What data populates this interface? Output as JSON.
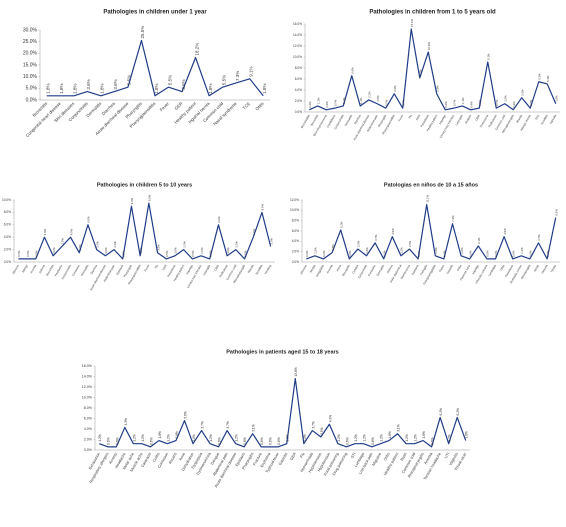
{
  "chart_data": [
    {
      "type": "line",
      "title": "Pathologies in children under 1 year",
      "color": "#1f3c88",
      "categories": [
        "Bronchitis",
        "Congenital heart disease",
        "Skin diseases",
        "Conjunctivitis",
        "Dermatitis",
        "Diarrhea",
        "Acute diarrheal disease",
        "Pharyngitis",
        "Pharyngotonsillitis",
        "Fever",
        "GER",
        "Healthy patient",
        "Inguinal hernia",
        "Common cold",
        "Nasal syndrome",
        "TCE",
        "Otitis"
      ],
      "values": [
        1.8,
        1.8,
        1.8,
        3.6,
        1.8,
        3.6,
        5.5,
        25.5,
        1.8,
        5.5,
        3.6,
        18.2,
        1.8,
        5.5,
        7.3,
        9.1,
        1.8
      ],
      "value_labels": [
        "1.8%",
        "1.8%",
        "1.8%",
        "3.6%",
        "1.8%",
        "3.6%",
        "5.5%",
        "25.5%",
        "1.8%",
        "5.5%",
        "3.6%",
        "18.2%",
        "1.8%",
        "5.5%",
        "7.3%",
        "9.1%",
        "1.8%"
      ],
      "ylim": [
        0,
        30
      ],
      "yticks": [
        {
          "value": 0,
          "label": "0.0%"
        },
        {
          "value": 5,
          "label": "5.0%"
        },
        {
          "value": 10,
          "label": "10.0%"
        },
        {
          "value": 15,
          "label": "15.0%"
        },
        {
          "value": 20,
          "label": "20.0%"
        },
        {
          "value": 25,
          "label": "25.0%"
        },
        {
          "value": 30,
          "label": "30.0%"
        }
      ]
    },
    {
      "type": "line",
      "title": "Pathologies in children from 1 to 5 years old",
      "color": "#1f3c88",
      "categories": [
        "Bronchiolitis",
        "Bronchitis",
        "Bronchopneumonia",
        "Candidiasis",
        "Conjunctivitis",
        "Dermatitis",
        "Diarrhea",
        "Acute diarrheal disease",
        "Abdominal pain",
        "Pharyngitis",
        "Pharyngotonsillitis",
        "Fever",
        "Flu",
        "GER",
        "Parasitosis",
        "Healthy patient",
        "Impetigo",
        "Urinary tract infection",
        "Laryngitis",
        "Scabies",
        "Otitis",
        "Pneumonia",
        "Pediculosis",
        "Common cold",
        "Rhinopharyngitis",
        "Rhinitis",
        "Allergic rhinitis",
        "TCE",
        "Tonsillitis",
        "Varicella"
      ],
      "values": [
        0.4,
        1.1,
        0.4,
        0.7,
        1.1,
        6.6,
        1.1,
        2.2,
        1.5,
        0.7,
        3.3,
        0.7,
        15.1,
        6.2,
        10.9,
        3.3,
        0.4,
        0.7,
        1.1,
        0.4,
        0.7,
        9.1,
        0.7,
        1.5,
        0.4,
        2.6,
        0.7,
        5.5,
        5.1,
        1.5
      ],
      "value_labels": [
        "0.4%",
        "1.1%",
        "0.4%",
        "0.7%",
        "1.1%",
        "6.6%",
        "1.1%",
        "2.2%",
        "1.5%",
        "0.7%",
        "3.3%",
        "0.7%",
        "15.1%",
        "6.2%",
        "10.9%",
        "3.3%",
        "0.4%",
        "0.7%",
        "1.1%",
        "0.4%",
        "0.7%",
        "9.1%",
        "0.7%",
        "1.5%",
        "0.4%",
        "2.6%",
        "0.7%",
        "5.5%",
        "5.1%",
        "1.5%"
      ],
      "ylim": [
        0,
        16
      ],
      "yticks": [
        {
          "value": 0,
          "label": "0.0%"
        },
        {
          "value": 2,
          "label": "2.0%"
        },
        {
          "value": 4,
          "label": "4.0%"
        },
        {
          "value": 6,
          "label": "6.0%"
        },
        {
          "value": 8,
          "label": "8.0%"
        },
        {
          "value": 10,
          "label": "10.0%"
        },
        {
          "value": 12,
          "label": "12.0%"
        },
        {
          "value": 14,
          "label": "14.0%"
        },
        {
          "value": 16,
          "label": "16.0%"
        }
      ]
    },
    {
      "type": "line",
      "title": "Pathologies in children 5 to 10 years",
      "color": "#1f3c88",
      "categories": [
        "Abscess",
        "Allergy",
        "Anemia",
        "Asthma",
        "Bronchitis",
        "Headache",
        "Conjunctivitis",
        "Contusion",
        "Dermatitis",
        "Diarrhea",
        "Acute diarrheal disease",
        "Abdominal pain",
        "Epistaxis",
        "Pharyngitis",
        "Pharyngotonsillitis",
        "Fever",
        "Flu",
        "GER",
        "Parasitosis",
        "Healthy patient",
        "Impetigo",
        "Urinary tract infection",
        "Laryngitis",
        "Otitis",
        "Pediculosis",
        "Common cold",
        "Rhinopharyngitis",
        "Rhinitis",
        "Tonsillitis",
        "Vomiting"
      ],
      "values": [
        0.5,
        0.5,
        0.5,
        4.0,
        1.0,
        2.5,
        4.0,
        1.5,
        6.0,
        2.0,
        1.0,
        2.0,
        0.5,
        9.0,
        1.0,
        9.5,
        1.5,
        0.5,
        1.0,
        2.0,
        0.5,
        1.0,
        0.5,
        6.0,
        1.0,
        2.0,
        0.5,
        4.0,
        8.0,
        2.5
      ],
      "value_labels": [
        "0.5%",
        "0.5%",
        "0.5%",
        "4.0%",
        "1.0%",
        "2.5%",
        "4.0%",
        "1.5%",
        "6.0%",
        "2.0%",
        "1.0%",
        "2.0%",
        "0.5%",
        "9.0%",
        "1.0%",
        "9.5%",
        "1.5%",
        "0.5%",
        "1.0%",
        "2.0%",
        "0.5%",
        "1.0%",
        "0.5%",
        "6.0%",
        "1.0%",
        "2.0%",
        "0.5%",
        "4.0%",
        "8.0%",
        "2.5%"
      ],
      "ylim": [
        0,
        10
      ],
      "yticks": [
        {
          "value": 0,
          "label": "0.0%"
        },
        {
          "value": 2,
          "label": "2.0%"
        },
        {
          "value": 4,
          "label": "4.0%"
        },
        {
          "value": 6,
          "label": "6.0%"
        },
        {
          "value": 8,
          "label": "8.0%"
        },
        {
          "value": 10,
          "label": "10.0%"
        }
      ]
    },
    {
      "type": "line",
      "title": "Patologias en niños de 10 a 15 años",
      "color": "#1f3c88",
      "categories": [
        "Absceso",
        "Alergia",
        "Amigdalitis",
        "Anemia",
        "Asma",
        "Bronquitis",
        "Cefalea",
        "Conjuntivitis",
        "Contusión",
        "Dermatitis",
        "Diarrea",
        "Dolor abdominal",
        "Dismenorrea",
        "Epistaxis",
        "Faringitis",
        "Faringoamigdalitis",
        "Fiebre",
        "Gastritis",
        "Gripe",
        "Paciente sano",
        "Impétigo",
        "Infección urinaria",
        "Lumbalgia",
        "Otitis",
        "Parasitosis",
        "Resfriado común",
        "Rinofaringitis",
        "Rinitis",
        "Varicela",
        "Vómito"
      ],
      "values": [
        0.6,
        1.2,
        0.6,
        1.8,
        6.2,
        0.6,
        2.5,
        1.2,
        3.7,
        0.6,
        4.9,
        1.2,
        2.5,
        0.6,
        11.1,
        1.2,
        0.6,
        7.4,
        1.2,
        0.6,
        3.1,
        0.6,
        0.6,
        4.9,
        0.6,
        1.2,
        0.6,
        3.7,
        0.6,
        8.6
      ],
      "value_labels": [
        "0.6%",
        "1.2%",
        "0.6%",
        "1.8%",
        "6.2%",
        "0.6%",
        "2.5%",
        "1.2%",
        "3.7%",
        "0.6%",
        "4.9%",
        "1.2%",
        "2.5%",
        "0.6%",
        "11.1%",
        "1.2%",
        "0.6%",
        "7.4%",
        "1.2%",
        "0.6%",
        "3.1%",
        "0.6%",
        "0.6%",
        "4.9%",
        "0.6%",
        "1.2%",
        "0.6%",
        "3.7%",
        "0.6%",
        "8.6%"
      ],
      "ylim": [
        0,
        12
      ],
      "yticks": [
        {
          "value": 0,
          "label": "0.0%"
        },
        {
          "value": 2,
          "label": "2.0%"
        },
        {
          "value": 4,
          "label": "4.0%"
        },
        {
          "value": 6,
          "label": "6.0%"
        },
        {
          "value": 8,
          "label": "8.0%"
        },
        {
          "value": 10,
          "label": "10.0%"
        },
        {
          "value": 12,
          "label": "12.0%"
        }
      ]
    },
    {
      "type": "line",
      "title": "Pathologies in patients aged 15 to 18 years",
      "color": "#1f3c88",
      "categories": [
        "Exhaustion",
        "Respiratory allergies",
        "Anxiety",
        "Headache",
        "Molar ache",
        "Muscle ache",
        "Cataracts",
        "Colitis",
        "Contusion",
        "Ascaris",
        "Acne",
        "Dehydration",
        "Dyspepsia",
        "Dysmenorrhea",
        "Dengue",
        "Abdominal pain",
        "Acute diarrheal disease",
        "Epistaxis",
        "Pharyngitis",
        "Fracture",
        "Erythema",
        "Typhoid fever",
        "Gastritis",
        "GER",
        "Flu",
        "Hemorrhoids",
        "Hypertension",
        "Hypotension",
        "Food poisoning",
        "Drug poisoning",
        "STI",
        "Lumbago",
        "Low back pain",
        "Migraine",
        "Otitis",
        "Healthy patient",
        "Rash",
        "Common cold",
        "Rhinopharyngitis",
        "Anemia",
        "Tension headache",
        "UTI",
        "Vaginitis",
        "Throat ulcer"
      ],
      "values": [
        1.2,
        0.6,
        0.6,
        4.3,
        1.2,
        1.2,
        0.6,
        1.8,
        1.2,
        1.8,
        5.6,
        1.2,
        3.7,
        1.2,
        0.6,
        3.7,
        1.2,
        0.6,
        3.1,
        0.6,
        0.6,
        0.6,
        1.2,
        13.6,
        1.2,
        3.7,
        2.5,
        4.9,
        1.2,
        0.6,
        1.2,
        1.2,
        0.6,
        1.2,
        1.8,
        3.1,
        1.2,
        1.2,
        1.8,
        0.6,
        6.2,
        1.2,
        6.2,
        1.8
      ],
      "value_labels": [
        "1.2%",
        "0.6%",
        "0.6%",
        "4.3%",
        "1.2%",
        "1.2%",
        "0.6%",
        "1.8%",
        "1.2%",
        "1.8%",
        "5.6%",
        "1.2%",
        "3.7%",
        "1.2%",
        "0.6%",
        "3.7%",
        "1.2%",
        "0.6%",
        "3.1%",
        "0.6%",
        "0.6%",
        "0.6%",
        "1.2%",
        "13.6%",
        "1.2%",
        "3.7%",
        "2.5%",
        "4.9%",
        "1.2%",
        "0.6%",
        "1.2%",
        "1.2%",
        "0.6%",
        "1.2%",
        "1.8%",
        "3.1%",
        "1.2%",
        "1.2%",
        "1.8%",
        "0.6%",
        "6.2%",
        "1.2%",
        "6.2%",
        "1.8%"
      ],
      "ylim": [
        0,
        16
      ],
      "yticks": [
        {
          "value": 0,
          "label": "0.0%"
        },
        {
          "value": 2,
          "label": "2.0%"
        },
        {
          "value": 4,
          "label": "4.0%"
        },
        {
          "value": 6,
          "label": "6.0%"
        },
        {
          "value": 8,
          "label": "8.0%"
        },
        {
          "value": 10,
          "label": "10.0%"
        },
        {
          "value": 12,
          "label": "12.0%"
        },
        {
          "value": 14,
          "label": "14.0%"
        },
        {
          "value": 16,
          "label": "16.0%"
        }
      ]
    }
  ]
}
